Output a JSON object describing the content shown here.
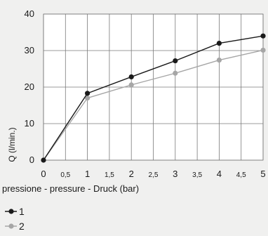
{
  "chart_data": {
    "type": "line",
    "title": "",
    "xlabel": "pressione - pressure - Druck (bar)",
    "ylabel": "Q (l/min.)",
    "xlim": [
      0,
      5
    ],
    "ylim": [
      0,
      40
    ],
    "grid": true,
    "legend_position": "bottom-left",
    "x_ticks": [
      {
        "value": 0,
        "label": "0",
        "major": true
      },
      {
        "value": 0.5,
        "label": "0,5",
        "major": false
      },
      {
        "value": 1,
        "label": "1",
        "major": true
      },
      {
        "value": 1.5,
        "label": "1,5",
        "major": false
      },
      {
        "value": 2,
        "label": "2",
        "major": true
      },
      {
        "value": 2.5,
        "label": "2,5",
        "major": false
      },
      {
        "value": 3,
        "label": "3",
        "major": true
      },
      {
        "value": 3.5,
        "label": "3,5",
        "major": false
      },
      {
        "value": 4,
        "label": "4",
        "major": true
      },
      {
        "value": 4.5,
        "label": "4,5",
        "major": false
      },
      {
        "value": 5,
        "label": "5",
        "major": true
      }
    ],
    "y_ticks": [
      {
        "value": 0,
        "label": "0"
      },
      {
        "value": 10,
        "label": "10"
      },
      {
        "value": 20,
        "label": "20"
      },
      {
        "value": 30,
        "label": "30"
      },
      {
        "value": 40,
        "label": "40"
      }
    ],
    "series": [
      {
        "name": "1",
        "color": "#1a1a1a",
        "x": [
          0,
          1,
          2,
          3,
          4,
          5
        ],
        "y": [
          0,
          18.3,
          22.8,
          27.2,
          32.0,
          34.0
        ]
      },
      {
        "name": "2",
        "color": "#a6a6a6",
        "x": [
          0,
          1,
          2,
          3,
          4,
          5
        ],
        "y": [
          0,
          17.0,
          20.6,
          23.8,
          27.4,
          30.1
        ]
      }
    ]
  }
}
